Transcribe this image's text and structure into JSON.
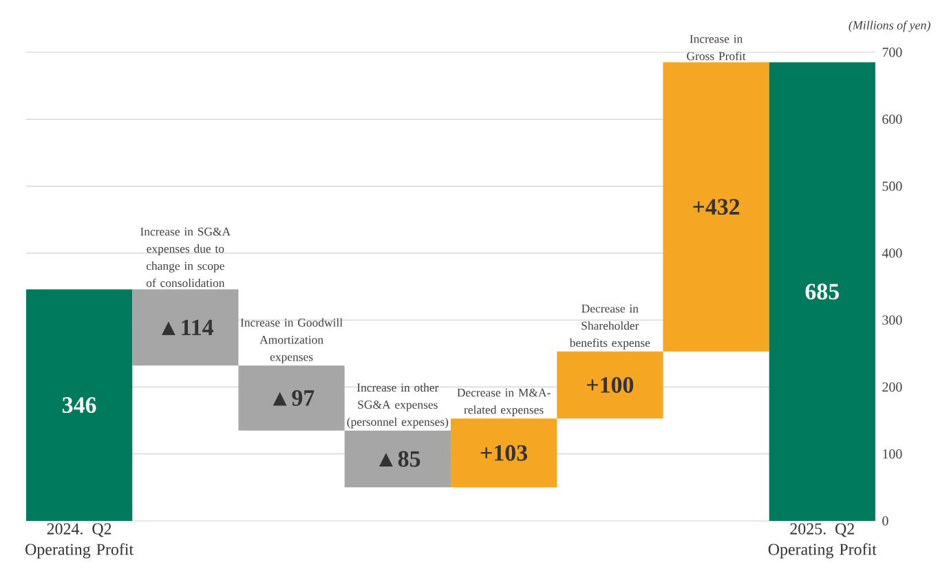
{
  "chart_data": {
    "type": "bar",
    "categories": [
      "2024. Q2 Operating Profit",
      "Increase in SG&A expenses due to change in scope of consolidation",
      "Increase in Goodwill Amortization expenses",
      "Increase in other SG&A expenses (personnel expenses)",
      "Decrease in M&A-related expenses",
      "Decrease in Shareholder benefits expense",
      "Increase in Gross Profit",
      "2025. Q2 Operating Profit"
    ],
    "values": [
      346,
      -114,
      -97,
      -85,
      103,
      100,
      432,
      685
    ],
    "base": [
      0,
      346,
      232,
      135,
      50,
      153,
      253,
      0
    ],
    "colors": [
      "#007a5c",
      "#a6a6a6",
      "#a6a6a6",
      "#a6a6a6",
      "#f5a623",
      "#f5a623",
      "#f5a623",
      "#007a5c"
    ],
    "value_labels": [
      "346",
      "▲114",
      "▲97",
      "▲85",
      "+103",
      "+100",
      "+432",
      "685"
    ],
    "ylabel": "(Millions of yen)",
    "ylim": [
      0,
      700
    ],
    "yticks": [
      0,
      100,
      200,
      300,
      400,
      500,
      600,
      700
    ],
    "grid": "y"
  }
}
